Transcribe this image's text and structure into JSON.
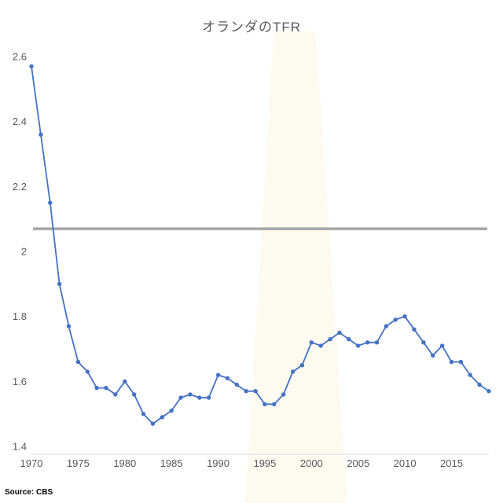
{
  "title": "オランダのTFR",
  "source": "Source: CBS",
  "chart_data": {
    "type": "line",
    "title": "オランダのTFR",
    "source": "Source: CBS",
    "x": [
      1970,
      1971,
      1972,
      1973,
      1974,
      1975,
      1976,
      1977,
      1978,
      1979,
      1980,
      1981,
      1982,
      1983,
      1984,
      1985,
      1986,
      1987,
      1988,
      1989,
      1990,
      1991,
      1992,
      1993,
      1994,
      1995,
      1996,
      1997,
      1998,
      1999,
      2000,
      2001,
      2002,
      2003,
      2004,
      2005,
      2006,
      2007,
      2008,
      2009,
      2010,
      2011,
      2012,
      2013,
      2014,
      2015,
      2016,
      2017,
      2018,
      2019
    ],
    "values": [
      2.57,
      2.36,
      2.15,
      1.9,
      1.77,
      1.66,
      1.63,
      1.58,
      1.58,
      1.56,
      1.6,
      1.56,
      1.5,
      1.47,
      1.49,
      1.51,
      1.55,
      1.56,
      1.55,
      1.55,
      1.62,
      1.61,
      1.59,
      1.57,
      1.57,
      1.53,
      1.53,
      1.56,
      1.63,
      1.65,
      1.72,
      1.71,
      1.73,
      1.75,
      1.73,
      1.71,
      1.72,
      1.72,
      1.77,
      1.79,
      1.8,
      1.76,
      1.72,
      1.68,
      1.71,
      1.66,
      1.66,
      1.62,
      1.59,
      1.57
    ],
    "series_name": "TFR",
    "reference_line": {
      "value": 2.07,
      "color": "#a6a6a6"
    },
    "line_color": "#4472c4",
    "marker_color": "#4472c4",
    "text_color": "#595959",
    "axis_line_color": "#d9d9d9",
    "xlabel": "",
    "ylabel": "",
    "ylim": [
      1.4,
      2.6
    ],
    "yticks": [
      1.4,
      1.6,
      1.8,
      2.0,
      2.2,
      2.4,
      2.6
    ],
    "ytick_labels": [
      "1.4",
      "1.6",
      "1.8",
      "2",
      "2.2",
      "2.4",
      "2.6"
    ],
    "xticks": [
      1970,
      1975,
      1980,
      1985,
      1990,
      1995,
      2000,
      2005,
      2010,
      2015
    ],
    "grid": false,
    "legend": "none"
  }
}
